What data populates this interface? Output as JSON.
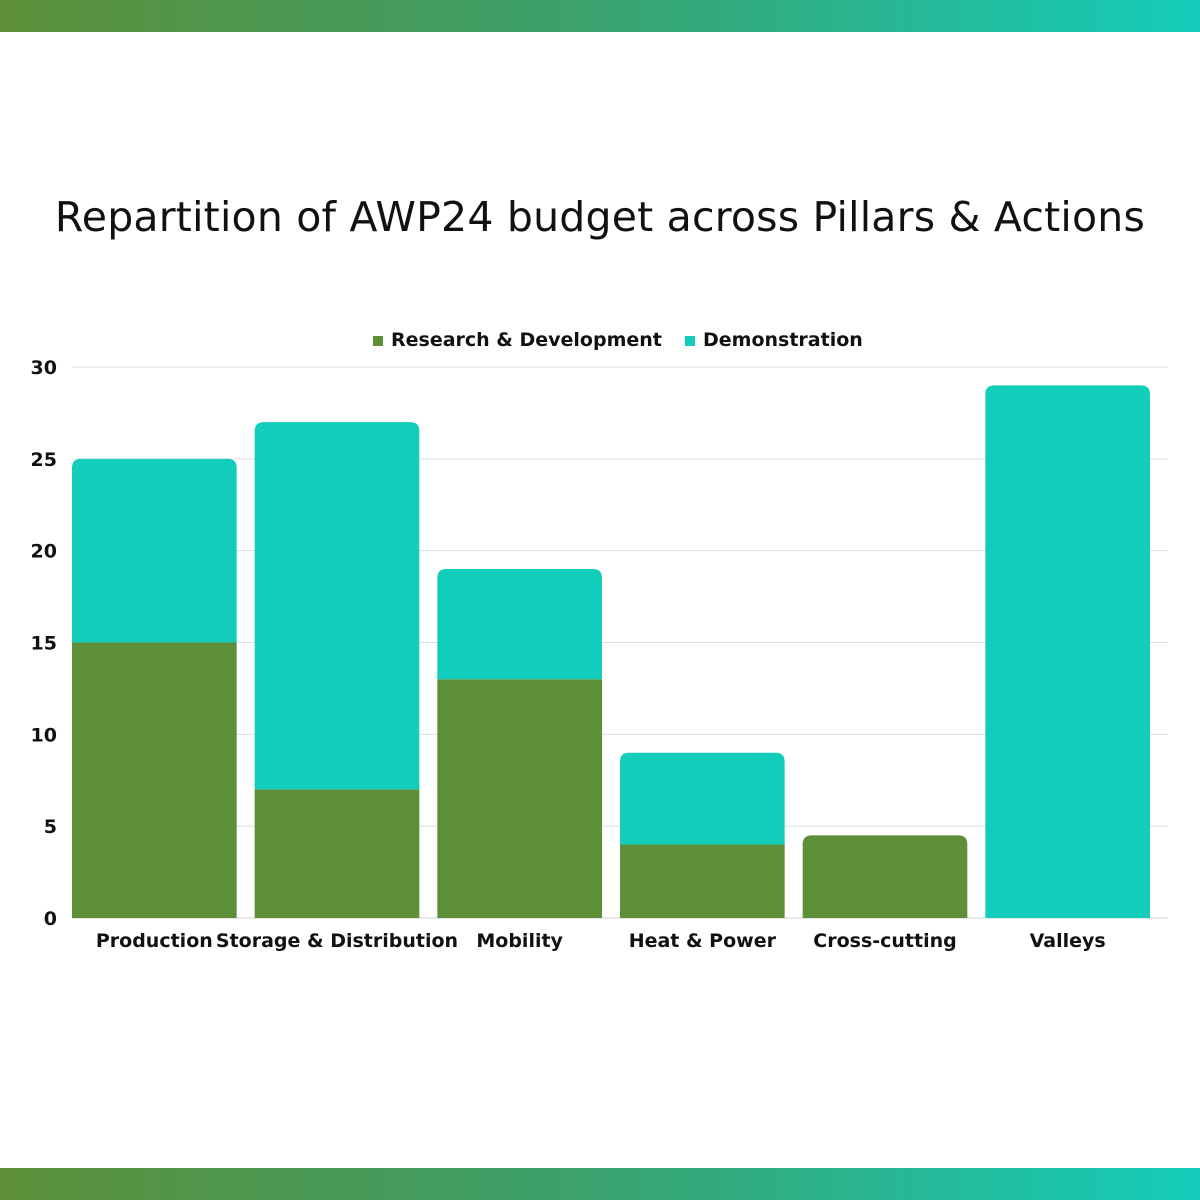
{
  "colors": {
    "research": "#5c8f38",
    "demonstration": "#13cdbb",
    "gridline": "#dedede",
    "band_start": "#5c8f38",
    "band_end": "#14cdbb"
  },
  "chart_data": {
    "type": "bar",
    "stacked": true,
    "title": "Repartition of AWP24 budget across Pillars & Actions",
    "xlabel": "",
    "ylabel": "",
    "categories": [
      "Production",
      "Storage & Distribution",
      "Mobility",
      "Heat & Power",
      "Cross-cutting",
      "Valleys"
    ],
    "series": [
      {
        "name": "Research & Development",
        "values": [
          15,
          7,
          13,
          4,
          4.5,
          0
        ]
      },
      {
        "name": "Demonstration",
        "values": [
          10,
          20,
          6,
          5,
          0,
          29
        ]
      }
    ],
    "ylim": [
      0,
      30
    ],
    "yticks": [
      0,
      5,
      10,
      15,
      20,
      25,
      30
    ],
    "grid": true,
    "legend": "top-center"
  }
}
